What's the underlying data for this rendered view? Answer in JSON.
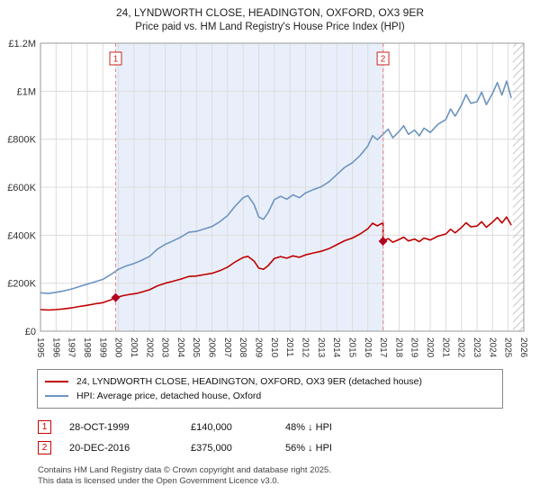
{
  "header": {
    "title": "24, LYNDWORTH CLOSE, HEADINGTON, OXFORD, OX3 9ER",
    "subtitle": "Price paid vs. HM Land Registry's House Price Index (HPI)"
  },
  "chart_data": {
    "type": "line",
    "x_range": [
      1995,
      2026
    ],
    "y_range": [
      0,
      1200000
    ],
    "x_ticks": [
      1995,
      1996,
      1997,
      1998,
      1999,
      2000,
      2001,
      2002,
      2003,
      2004,
      2005,
      2006,
      2007,
      2008,
      2009,
      2010,
      2011,
      2012,
      2013,
      2014,
      2015,
      2016,
      2017,
      2018,
      2019,
      2020,
      2021,
      2022,
      2023,
      2024,
      2025,
      2026
    ],
    "y_ticks": [
      {
        "v": 0,
        "label": "£0"
      },
      {
        "v": 200000,
        "label": "£200K"
      },
      {
        "v": 400000,
        "label": "£400K"
      },
      {
        "v": 600000,
        "label": "£600K"
      },
      {
        "v": 800000,
        "label": "£800K"
      },
      {
        "v": 1000000,
        "label": "£1M"
      },
      {
        "v": 1200000,
        "label": "£1.2M"
      }
    ],
    "grid": true,
    "legend_position": "bottom",
    "shaded_region": {
      "from": 1999.82,
      "to": 2016.97,
      "color": "#e9effa"
    },
    "hatched_region": {
      "from": 2025.3,
      "to": 2026
    },
    "sales": [
      {
        "n": "1",
        "x": 1999.82,
        "price": 140000
      },
      {
        "n": "2",
        "x": 2016.97,
        "price": 375000
      }
    ],
    "values_unit": "GBP_thousands",
    "series": [
      {
        "name": "24, LYNDWORTH CLOSE, HEADINGTON, OXFORD, OX3 9ER (detached house)",
        "color": "#c00000",
        "points": [
          [
            1995,
            90
          ],
          [
            1995.5,
            88
          ],
          [
            1996,
            90
          ],
          [
            1996.5,
            93
          ],
          [
            1997,
            97
          ],
          [
            1997.5,
            103
          ],
          [
            1998,
            108
          ],
          [
            1998.5,
            114
          ],
          [
            1999,
            119
          ],
          [
            1999.5,
            130
          ],
          [
            1999.82,
            140
          ],
          [
            2000.3,
            148
          ],
          [
            2000.8,
            154
          ],
          [
            2001.2,
            158
          ],
          [
            2001.6,
            165
          ],
          [
            2002,
            173
          ],
          [
            2002.5,
            189
          ],
          [
            2003,
            200
          ],
          [
            2003.5,
            208
          ],
          [
            2004,
            217
          ],
          [
            2004.5,
            228
          ],
          [
            2005,
            230
          ],
          [
            2005.5,
            236
          ],
          [
            2006,
            241
          ],
          [
            2006.5,
            252
          ],
          [
            2007,
            267
          ],
          [
            2007.5,
            289
          ],
          [
            2008,
            307
          ],
          [
            2008.3,
            312
          ],
          [
            2008.7,
            292
          ],
          [
            2009,
            263
          ],
          [
            2009.3,
            258
          ],
          [
            2009.6,
            273
          ],
          [
            2010,
            303
          ],
          [
            2010.4,
            311
          ],
          [
            2010.8,
            304
          ],
          [
            2011.2,
            314
          ],
          [
            2011.6,
            308
          ],
          [
            2012,
            318
          ],
          [
            2012.5,
            326
          ],
          [
            2013,
            333
          ],
          [
            2013.5,
            344
          ],
          [
            2014,
            360
          ],
          [
            2014.5,
            377
          ],
          [
            2015,
            388
          ],
          [
            2015.5,
            405
          ],
          [
            2016,
            427
          ],
          [
            2016.3,
            450
          ],
          [
            2016.6,
            439
          ],
          [
            2016.97,
            452
          ],
          [
            2016.97,
            375
          ],
          [
            2017.3,
            386
          ],
          [
            2017.6,
            371
          ],
          [
            2018,
            382
          ],
          [
            2018.3,
            392
          ],
          [
            2018.6,
            376
          ],
          [
            2019,
            384
          ],
          [
            2019.3,
            373
          ],
          [
            2019.6,
            388
          ],
          [
            2020,
            380
          ],
          [
            2020.5,
            396
          ],
          [
            2021,
            405
          ],
          [
            2021.3,
            425
          ],
          [
            2021.6,
            410
          ],
          [
            2022,
            432
          ],
          [
            2022.3,
            452
          ],
          [
            2022.6,
            435
          ],
          [
            2023,
            438
          ],
          [
            2023.3,
            456
          ],
          [
            2023.6,
            433
          ],
          [
            2024,
            455
          ],
          [
            2024.3,
            474
          ],
          [
            2024.6,
            451
          ],
          [
            2024.9,
            476
          ],
          [
            2025.2,
            442
          ]
        ]
      },
      {
        "name": "HPI: Average price, detached house, Oxford",
        "color": "#6d94bf",
        "points": [
          [
            1995,
            160
          ],
          [
            1995.5,
            157
          ],
          [
            1996,
            162
          ],
          [
            1996.5,
            168
          ],
          [
            1997,
            176
          ],
          [
            1997.5,
            186
          ],
          [
            1998,
            196
          ],
          [
            1998.5,
            206
          ],
          [
            1999,
            216
          ],
          [
            1999.5,
            236
          ],
          [
            2000,
            258
          ],
          [
            2000.5,
            272
          ],
          [
            2001,
            282
          ],
          [
            2001.5,
            296
          ],
          [
            2002,
            312
          ],
          [
            2002.5,
            342
          ],
          [
            2003,
            362
          ],
          [
            2003.5,
            376
          ],
          [
            2004,
            392
          ],
          [
            2004.5,
            412
          ],
          [
            2005,
            416
          ],
          [
            2005.5,
            426
          ],
          [
            2006,
            436
          ],
          [
            2006.5,
            456
          ],
          [
            2007,
            482
          ],
          [
            2007.5,
            522
          ],
          [
            2008,
            556
          ],
          [
            2008.3,
            565
          ],
          [
            2008.7,
            528
          ],
          [
            2009,
            476
          ],
          [
            2009.3,
            466
          ],
          [
            2009.6,
            494
          ],
          [
            2010,
            548
          ],
          [
            2010.4,
            562
          ],
          [
            2010.8,
            550
          ],
          [
            2011.2,
            568
          ],
          [
            2011.6,
            556
          ],
          [
            2012,
            576
          ],
          [
            2012.5,
            590
          ],
          [
            2013,
            602
          ],
          [
            2013.5,
            622
          ],
          [
            2014,
            652
          ],
          [
            2014.5,
            682
          ],
          [
            2015,
            702
          ],
          [
            2015.5,
            732
          ],
          [
            2016,
            772
          ],
          [
            2016.3,
            815
          ],
          [
            2016.6,
            798
          ],
          [
            2017,
            822
          ],
          [
            2017.3,
            842
          ],
          [
            2017.6,
            806
          ],
          [
            2018,
            832
          ],
          [
            2018.3,
            856
          ],
          [
            2018.6,
            820
          ],
          [
            2019,
            838
          ],
          [
            2019.3,
            814
          ],
          [
            2019.6,
            846
          ],
          [
            2020,
            828
          ],
          [
            2020.5,
            862
          ],
          [
            2021,
            882
          ],
          [
            2021.3,
            926
          ],
          [
            2021.6,
            896
          ],
          [
            2022,
            942
          ],
          [
            2022.3,
            986
          ],
          [
            2022.6,
            950
          ],
          [
            2023,
            956
          ],
          [
            2023.3,
            996
          ],
          [
            2023.6,
            944
          ],
          [
            2024,
            992
          ],
          [
            2024.3,
            1036
          ],
          [
            2024.6,
            984
          ],
          [
            2024.9,
            1042
          ],
          [
            2025.2,
            972
          ]
        ]
      }
    ]
  },
  "legend": {
    "items": [
      {
        "label": "24, LYNDWORTH CLOSE, HEADINGTON, OXFORD, OX3 9ER (detached house)",
        "color": "#c00000"
      },
      {
        "label": "HPI: Average price, detached house, Oxford",
        "color": "#6d94bf"
      }
    ]
  },
  "annotations": [
    {
      "num": "1",
      "date": "28-OCT-1999",
      "price": "£140,000",
      "hpi": "48% ↓ HPI"
    },
    {
      "num": "2",
      "date": "20-DEC-2016",
      "price": "£375,000",
      "hpi": "56% ↓ HPI"
    }
  ],
  "footer": {
    "line1": "Contains HM Land Registry data © Crown copyright and database right 2025.",
    "line2": "This data is licensed under the Open Government Licence v3.0."
  }
}
